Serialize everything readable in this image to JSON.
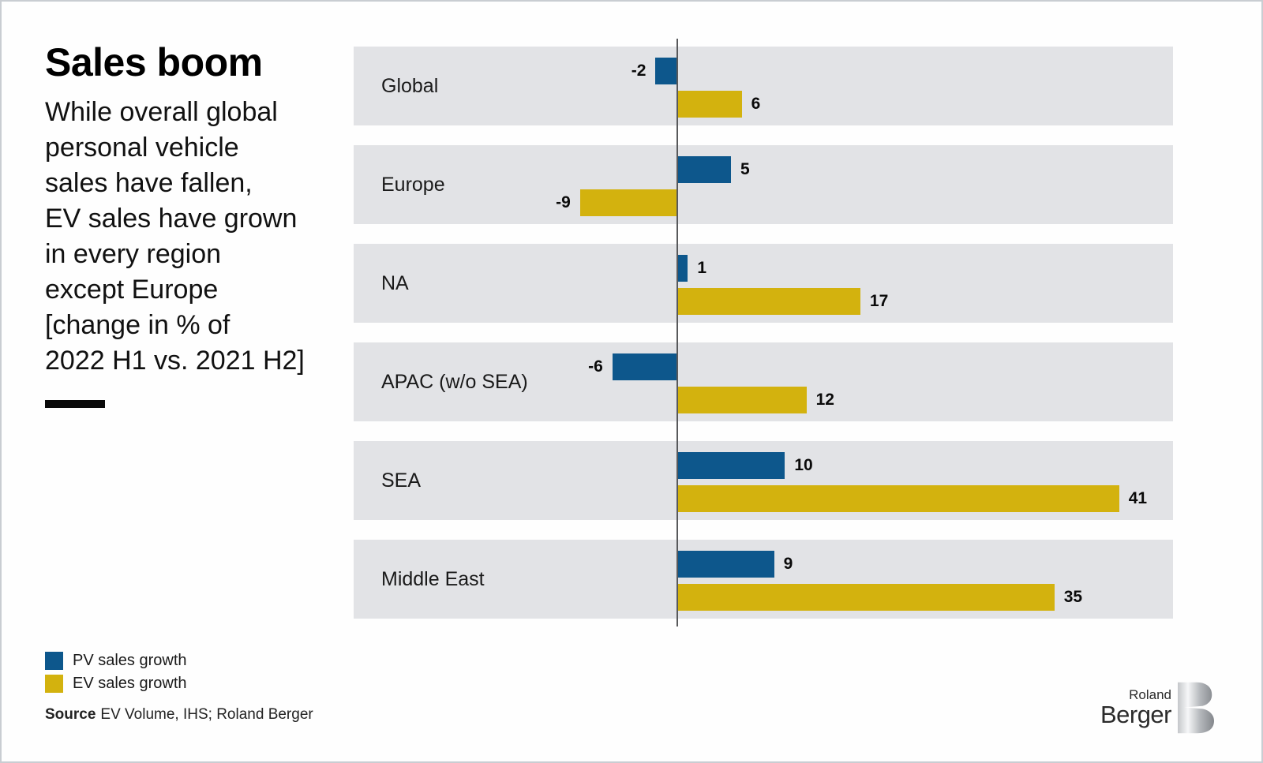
{
  "header": {
    "title": "Sales boom",
    "subtitle_lines": [
      "While overall global",
      "personal vehicle",
      "sales have fallen,",
      "EV sales have grown",
      "in every region",
      "except Europe",
      "[change in % of",
      "2022 H1 vs. 2021 H2]"
    ]
  },
  "chart_data": {
    "type": "bar",
    "orientation": "horizontal",
    "title": "Sales boom",
    "subtitle": "While overall global personal vehicle sales have fallen, EV sales have grown in every region except Europe [change in % of 2022 H1 vs. 2021 H2]",
    "value_unit": "% change, 2022 H1 vs. 2021 H2",
    "categories": [
      "Global",
      "Europe",
      "NA",
      "APAC (w/o SEA)",
      "SEA",
      "Middle East"
    ],
    "series": [
      {
        "name": "PV sales growth",
        "color": "#0d578c",
        "values": [
          -2,
          5,
          1,
          -6,
          10,
          9
        ]
      },
      {
        "name": "EV sales growth",
        "color": "#d3b20e",
        "values": [
          6,
          -9,
          17,
          12,
          41,
          35
        ]
      }
    ],
    "xlim": [
      -30,
      46
    ],
    "baseline": 0,
    "grid": false,
    "legend_position": "bottom-left",
    "row_background": "#e2e3e6",
    "axis_line_color": "#58595b"
  },
  "legend": {
    "items": [
      {
        "label": "PV sales growth",
        "color": "#0d578c"
      },
      {
        "label": "EV sales growth",
        "color": "#d3b20e"
      }
    ]
  },
  "source": {
    "label": "Source",
    "text": "EV Volume, IHS; Roland Berger"
  },
  "logo": {
    "line1": "Roland",
    "line2": "Berger"
  }
}
